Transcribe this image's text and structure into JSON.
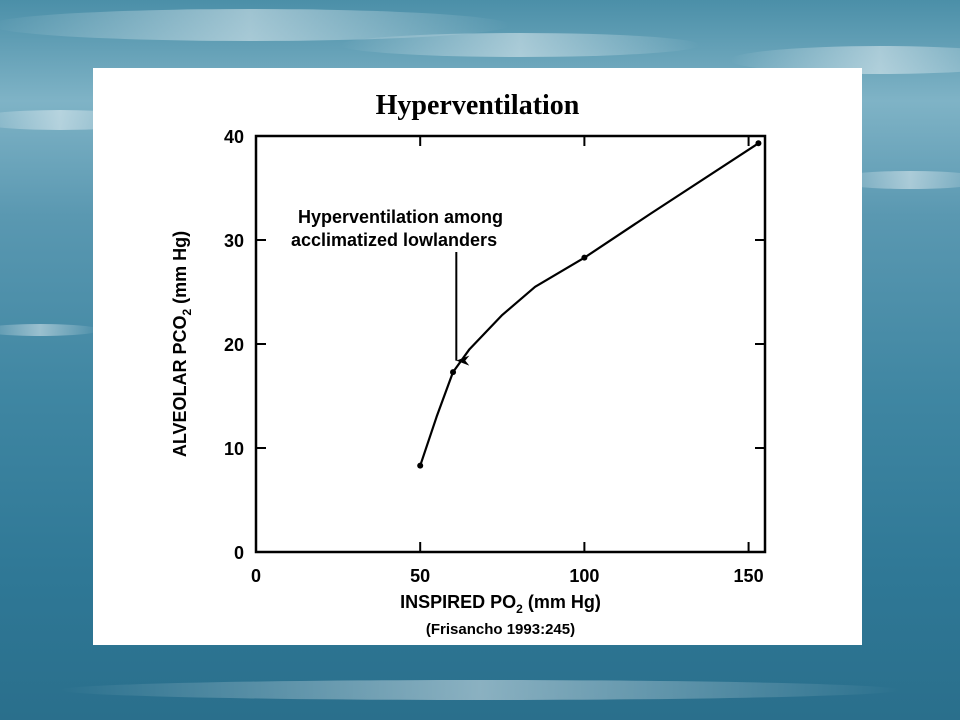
{
  "chart_data": {
    "type": "line",
    "title": "Hyperventilation",
    "xlabel_main": "INSPIRED",
    "xlabel_po": "PO",
    "xlabel_sub": "2",
    "xlabel_unit": "(mm Hg)",
    "ylabel_main": "ALVEOLAR",
    "ylabel_pco": "PCO",
    "ylabel_sub": "2",
    "ylabel_unit": "(mm Hg)",
    "xlim": [
      0,
      155
    ],
    "ylim": [
      0,
      40
    ],
    "xticks": [
      0,
      50,
      100,
      150
    ],
    "yticks": [
      0,
      10,
      20,
      30,
      40
    ],
    "x": [
      50,
      55,
      60,
      65,
      75,
      85,
      100,
      120,
      153
    ],
    "y": [
      8.3,
      13.0,
      17.3,
      19.5,
      22.8,
      25.5,
      28.3,
      32.5,
      39.3
    ],
    "markers_x": [
      50,
      60,
      100,
      153
    ],
    "markers_y": [
      8.3,
      17.3,
      28.3,
      39.3
    ],
    "annotation": {
      "line1": "Hyperventilation among",
      "line2": "acclimatized lowlanders",
      "arrow_to_x": 61,
      "arrow_to_y": 18.4
    },
    "grid": false,
    "source": "(Frisancho 1993:245)"
  }
}
